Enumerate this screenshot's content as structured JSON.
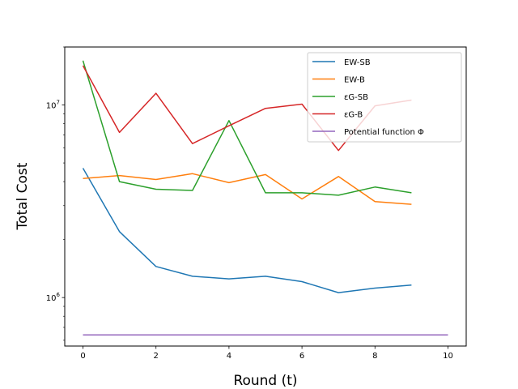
{
  "chart_data": {
    "type": "line",
    "title": "",
    "xlabel": "Round (t)",
    "ylabel": "Total Cost",
    "xlim": [
      -0.5,
      10.5
    ],
    "ylim": [
      560000,
      20000000
    ],
    "yscale": "log",
    "xticks": [
      0,
      2,
      4,
      6,
      8,
      10
    ],
    "yticks": [
      {
        "value": 1000000,
        "base": "10",
        "exp": "6"
      },
      {
        "value": 10000000,
        "base": "10",
        "exp": "7"
      }
    ],
    "grid": false,
    "legend_position": "top-right",
    "series": [
      {
        "name": "EW-SB",
        "color": "#1f77b4",
        "x": [
          0,
          1,
          2,
          3,
          4,
          5,
          6,
          7,
          8,
          9
        ],
        "values": [
          4700000,
          2200000,
          1450000,
          1290000,
          1250000,
          1290000,
          1210000,
          1060000,
          1120000,
          1160000
        ]
      },
      {
        "name": "EW-B",
        "color": "#ff7f0e",
        "x": [
          0,
          1,
          2,
          3,
          4,
          5,
          6,
          7,
          8,
          9
        ],
        "values": [
          4150000,
          4300000,
          4100000,
          4400000,
          3950000,
          4350000,
          3250000,
          4250000,
          3150000,
          3050000
        ]
      },
      {
        "name": "εG-SB",
        "color": "#2ca02c",
        "x": [
          0,
          1,
          2,
          3,
          4,
          5,
          6,
          7,
          8,
          9
        ],
        "values": [
          17000000,
          4000000,
          3650000,
          3600000,
          8300000,
          3500000,
          3500000,
          3400000,
          3750000,
          3500000
        ]
      },
      {
        "name": "εG-B",
        "color": "#d62728",
        "x": [
          0,
          1,
          2,
          3,
          4,
          5,
          6,
          7,
          8,
          9
        ],
        "values": [
          16000000,
          7200000,
          11500000,
          6300000,
          7800000,
          9600000,
          10100000,
          5800000,
          9900000,
          10600000
        ]
      },
      {
        "name": "Potential function Φ",
        "color": "#9467bd",
        "x": [
          0,
          1,
          2,
          3,
          4,
          5,
          6,
          7,
          8,
          9,
          10
        ],
        "values": [
          640000,
          640000,
          640000,
          640000,
          640000,
          640000,
          640000,
          640000,
          640000,
          640000,
          640000
        ]
      }
    ]
  }
}
